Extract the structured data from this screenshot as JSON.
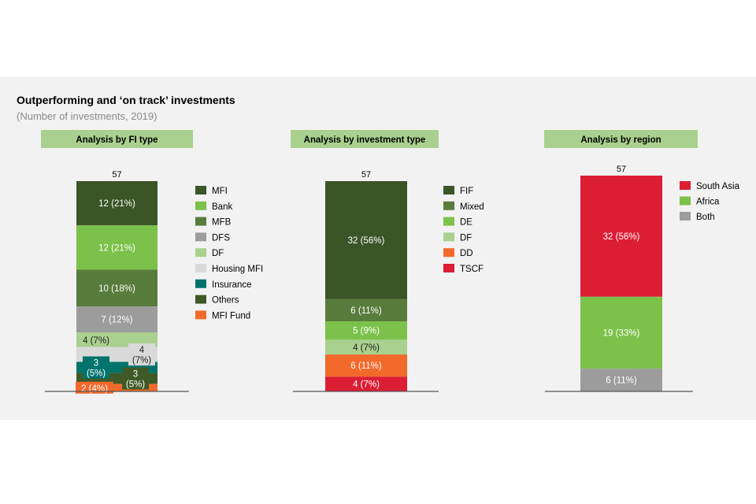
{
  "title": "Outperforming and ‘on track’ investments",
  "subtitle": "(Number of investments, 2019)",
  "chart_data": [
    {
      "type": "bar",
      "stacked": true,
      "title": "Analysis by FI type",
      "total": "57",
      "series": [
        {
          "name": "MFI",
          "value": 12,
          "label": "12 (21%)",
          "color": "#3b5526"
        },
        {
          "name": "Bank",
          "value": 12,
          "label": "12 (21%)",
          "color": "#7cc14a"
        },
        {
          "name": "MFB",
          "value": 10,
          "label": "10 (18%)",
          "color": "#587c3b"
        },
        {
          "name": "DFS",
          "value": 7,
          "label": "7 (12%)",
          "color": "#9c9c9c"
        },
        {
          "name": "DF",
          "value": 4,
          "label": "4 (7%)",
          "color": "#a9d08e"
        },
        {
          "name": "Housing MFI",
          "value": 4,
          "label": "4 (7%)",
          "color": "#d9d9d9"
        },
        {
          "name": "Insurance",
          "value": 3,
          "label": "3 (5%)",
          "color": "#00736d"
        },
        {
          "name": "Others",
          "value": 3,
          "label": "3 (5%)",
          "color": "#3f5a27"
        },
        {
          "name": "MFI Fund",
          "value": 2,
          "label": "2 (4%)",
          "color": "#f26a2b"
        }
      ]
    },
    {
      "type": "bar",
      "stacked": true,
      "title": "Analysis by investment type",
      "total": "57",
      "series": [
        {
          "name": "FIF",
          "value": 32,
          "label": "32 (56%)",
          "color": "#3b5526"
        },
        {
          "name": "Mixed",
          "value": 6,
          "label": "6 (11%)",
          "color": "#587c3b"
        },
        {
          "name": "DE",
          "value": 5,
          "label": "5 (9%)",
          "color": "#7cc14a"
        },
        {
          "name": "DF",
          "value": 4,
          "label": "4 (7%)",
          "color": "#a9d08e"
        },
        {
          "name": "DD",
          "value": 6,
          "label": "6 (11%)",
          "color": "#f26a2b"
        },
        {
          "name": "TSCF",
          "value": 4,
          "label": "4 (7%)",
          "color": "#dc1e35"
        }
      ]
    },
    {
      "type": "bar",
      "stacked": true,
      "title": "Analysis by region",
      "total": "57",
      "series": [
        {
          "name": "South Asia",
          "value": 32,
          "label": "32 (56%)",
          "color": "#dc1e35"
        },
        {
          "name": "Africa",
          "value": 19,
          "label": "19 (33%)",
          "color": "#7cc14a"
        },
        {
          "name": "Both",
          "value": 6,
          "label": "6 (11%)",
          "color": "#9c9c9c"
        }
      ]
    }
  ]
}
